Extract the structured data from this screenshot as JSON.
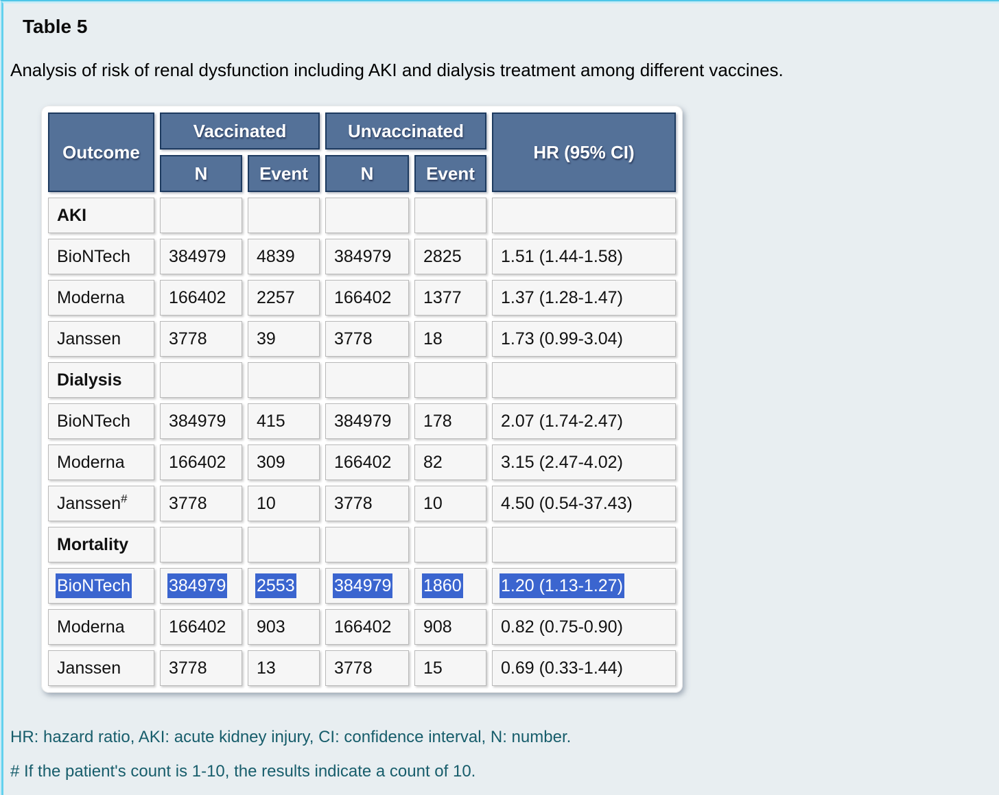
{
  "page": {
    "title": "Table 5",
    "caption": "Analysis of risk of renal dysfunction including AKI and dialysis treatment among different vaccines.",
    "footnotes": [
      "HR: hazard ratio, AKI: acute kidney injury, CI: confidence interval, N: number.",
      "# If the patient's count is 1-10, the results indicate a count of 10."
    ]
  },
  "colors": {
    "header_bg": "#547198",
    "header_border": "#1d3a5f",
    "selection_bg": "#3b65cf",
    "footnote_text": "#175d6b",
    "page_bg": "#e8eef1",
    "frame_cyan": "#63d1ee"
  },
  "table": {
    "header": {
      "outcome": "Outcome",
      "vaccinated": "Vaccinated",
      "unvaccinated": "Unvaccinated",
      "hr": "HR (95% CI)",
      "n1": "N",
      "event1": "Event",
      "n2": "N",
      "event2": "Event"
    },
    "rows": [
      {
        "type": "section",
        "label": "AKI"
      },
      {
        "type": "data",
        "name": "BioNTech",
        "vacc_n": "384979",
        "vacc_event": "4839",
        "unvacc_n": "384979",
        "unvacc_event": "2825",
        "hr": "1.51 (1.44-1.58)",
        "selected": false
      },
      {
        "type": "data",
        "name": "Moderna",
        "vacc_n": "166402",
        "vacc_event": "2257",
        "unvacc_n": "166402",
        "unvacc_event": "1377",
        "hr": "1.37 (1.28-1.47)",
        "selected": false
      },
      {
        "type": "data",
        "name": "Janssen",
        "vacc_n": "3778",
        "vacc_event": "39",
        "unvacc_n": "3778",
        "unvacc_event": "18",
        "hr": "1.73 (0.99-3.04)",
        "selected": false
      },
      {
        "type": "section",
        "label": "Dialysis"
      },
      {
        "type": "data",
        "name": "BioNTech",
        "vacc_n": "384979",
        "vacc_event": "415",
        "unvacc_n": "384979",
        "unvacc_event": "178",
        "hr": "2.07 (1.74-2.47)",
        "selected": false
      },
      {
        "type": "data",
        "name": "Moderna",
        "vacc_n": "166402",
        "vacc_event": "309",
        "unvacc_n": "166402",
        "unvacc_event": "82",
        "hr": "3.15 (2.47-4.02)",
        "selected": false
      },
      {
        "type": "data",
        "name": "Janssen",
        "sup": "#",
        "vacc_n": "3778",
        "vacc_event": "10",
        "unvacc_n": "3778",
        "unvacc_event": "10",
        "hr": "4.50 (0.54-37.43)",
        "selected": false
      },
      {
        "type": "section",
        "label": "Mortality"
      },
      {
        "type": "data",
        "name": "BioNTech",
        "vacc_n": "384979",
        "vacc_event": "2553",
        "unvacc_n": "384979",
        "unvacc_event": "1860",
        "hr": "1.20 (1.13-1.27)",
        "selected": true
      },
      {
        "type": "data",
        "name": "Moderna",
        "vacc_n": "166402",
        "vacc_event": "903",
        "unvacc_n": "166402",
        "unvacc_event": "908",
        "hr": "0.82 (0.75-0.90)",
        "selected": false
      },
      {
        "type": "data",
        "name": "Janssen",
        "vacc_n": "3778",
        "vacc_event": "13",
        "unvacc_n": "3778",
        "unvacc_event": "15",
        "hr": "0.69 (0.33-1.44)",
        "selected": false
      }
    ]
  }
}
